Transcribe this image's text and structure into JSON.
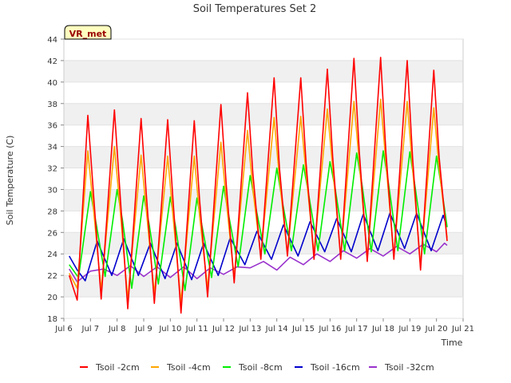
{
  "chart_data": {
    "type": "line",
    "title": "Soil Temperatures Set 2",
    "xlabel": "Time",
    "ylabel": "Soil Temperature (C)",
    "badge": "VR_met",
    "xlim": [
      6.0,
      21.0
    ],
    "ylim": [
      18,
      44
    ],
    "y_ticks": [
      18,
      20,
      22,
      24,
      26,
      28,
      30,
      32,
      34,
      36,
      38,
      40,
      42,
      44
    ],
    "x_ticks": [
      6,
      7,
      8,
      9,
      10,
      11,
      12,
      13,
      14,
      15,
      16,
      17,
      18,
      19,
      20,
      21
    ],
    "x_tick_labels": [
      "Jul 6",
      "Jul 7",
      "Jul 8",
      "Jul 9",
      "Jul 10",
      "Jul 11",
      "Jul 12",
      "Jul 13",
      "Jul 14",
      "Jul 15",
      "Jul 16",
      "Jul 17",
      "Jul 18",
      "Jul 19",
      "Jul 20",
      "Jul 21"
    ],
    "grid": "horizontal bands",
    "legend_position": "bottom",
    "series": [
      {
        "name": "Tsoil -2cm",
        "color": "#ff0000",
        "x": [
          6.2,
          6.5,
          6.9,
          7.1,
          7.4,
          7.9,
          8.1,
          8.4,
          8.9,
          9.1,
          9.4,
          9.9,
          10.1,
          10.4,
          10.9,
          11.1,
          11.4,
          11.9,
          12.1,
          12.4,
          12.9,
          13.1,
          13.4,
          13.9,
          14.1,
          14.4,
          14.9,
          15.1,
          15.4,
          15.9,
          16.1,
          16.4,
          16.9,
          17.1,
          17.4,
          17.9,
          18.1,
          18.4,
          18.9,
          19.1,
          19.4,
          19.9,
          20.1,
          20.4
        ],
        "y": [
          22.0,
          19.7,
          36.9,
          30.0,
          19.8,
          37.4,
          30.0,
          18.9,
          36.6,
          29.5,
          19.4,
          36.5,
          29.0,
          18.5,
          36.4,
          29.0,
          20.0,
          37.9,
          30.5,
          21.3,
          39.0,
          31.5,
          23.5,
          40.4,
          32.0,
          23.8,
          40.4,
          32.5,
          23.5,
          41.2,
          33.0,
          23.5,
          42.2,
          33.5,
          23.3,
          42.3,
          33.5,
          23.5,
          42.0,
          33.0,
          22.5,
          41.1,
          33.0,
          25.2
        ]
      },
      {
        "name": "Tsoil -4cm",
        "color": "#ffa500",
        "x": [
          6.2,
          6.5,
          6.9,
          7.1,
          7.4,
          7.9,
          8.1,
          8.4,
          8.9,
          9.1,
          9.4,
          9.9,
          10.1,
          10.4,
          10.9,
          11.1,
          11.4,
          11.9,
          12.1,
          12.4,
          12.9,
          13.1,
          13.4,
          13.9,
          14.1,
          14.4,
          14.9,
          15.1,
          15.4,
          15.9,
          16.1,
          16.4,
          16.9,
          17.1,
          17.4,
          17.9,
          18.1,
          18.4,
          18.9,
          19.1,
          19.4,
          19.9,
          20.1,
          20.4
        ],
        "y": [
          22.2,
          20.8,
          33.6,
          28.5,
          20.6,
          34.0,
          28.5,
          19.8,
          33.2,
          28.0,
          20.3,
          33.1,
          27.5,
          19.5,
          33.1,
          27.5,
          20.8,
          34.4,
          29.0,
          21.8,
          35.5,
          30.0,
          23.8,
          36.7,
          31.0,
          24.0,
          36.8,
          31.5,
          24.0,
          37.5,
          32.0,
          23.8,
          38.2,
          32.5,
          23.6,
          38.4,
          32.5,
          23.8,
          38.2,
          32.0,
          23.0,
          37.6,
          32.0,
          25.5
        ]
      },
      {
        "name": "Tsoil -8cm",
        "color": "#00ee00",
        "x": [
          6.2,
          6.55,
          7.0,
          7.2,
          7.55,
          8.0,
          8.2,
          8.55,
          9.0,
          9.2,
          9.55,
          10.0,
          10.2,
          10.55,
          11.0,
          11.2,
          11.55,
          12.0,
          12.2,
          12.55,
          13.0,
          13.2,
          13.55,
          14.0,
          14.2,
          14.55,
          15.0,
          15.2,
          15.55,
          16.0,
          16.2,
          16.55,
          17.0,
          17.2,
          17.55,
          18.0,
          18.2,
          18.55,
          19.0,
          19.2,
          19.55,
          20.0,
          20.2,
          20.4
        ],
        "y": [
          23.0,
          21.8,
          29.8,
          27.0,
          21.9,
          30.0,
          27.2,
          20.8,
          29.4,
          26.8,
          21.2,
          29.3,
          26.5,
          20.6,
          29.2,
          26.5,
          21.8,
          30.3,
          27.5,
          22.8,
          31.3,
          28.5,
          24.0,
          32.0,
          29.0,
          24.3,
          32.3,
          29.5,
          24.3,
          32.6,
          30.0,
          24.3,
          33.4,
          30.5,
          24.2,
          33.6,
          30.5,
          24.3,
          33.5,
          30.2,
          24.0,
          33.1,
          30.0,
          26.5
        ]
      },
      {
        "name": "Tsoil -16cm",
        "color": "#0000cc",
        "x": [
          6.2,
          6.5,
          6.8,
          7.25,
          7.8,
          8.25,
          8.8,
          9.25,
          9.8,
          10.25,
          10.8,
          11.25,
          11.8,
          12.25,
          12.8,
          13.25,
          13.8,
          14.25,
          14.8,
          15.25,
          15.8,
          16.25,
          16.8,
          17.25,
          17.8,
          18.25,
          18.8,
          19.25,
          19.8,
          20.25,
          20.4
        ],
        "y": [
          23.8,
          22.5,
          21.5,
          25.2,
          22.0,
          25.4,
          22.0,
          25.0,
          21.7,
          25.0,
          21.6,
          25.0,
          22.0,
          25.5,
          23.0,
          26.1,
          23.5,
          26.7,
          23.8,
          27.0,
          24.2,
          27.3,
          24.2,
          27.7,
          24.3,
          27.8,
          24.5,
          27.8,
          24.3,
          27.6,
          26.5
        ]
      },
      {
        "name": "Tsoil -32cm",
        "color": "#9932cc",
        "x": [
          6.2,
          6.5,
          7.0,
          7.5,
          8.0,
          8.5,
          9.0,
          9.5,
          10.0,
          10.5,
          11.0,
          11.5,
          12.0,
          12.5,
          13.0,
          13.5,
          14.0,
          14.5,
          15.0,
          15.5,
          16.0,
          16.5,
          17.0,
          17.5,
          18.0,
          18.5,
          19.0,
          19.5,
          20.0,
          20.3,
          20.4
        ],
        "y": [
          22.6,
          21.4,
          22.4,
          22.6,
          22.0,
          22.9,
          21.9,
          22.8,
          21.8,
          22.8,
          21.7,
          22.7,
          22.1,
          22.8,
          22.7,
          23.3,
          22.5,
          23.7,
          23.0,
          24.0,
          23.3,
          24.3,
          23.6,
          24.5,
          23.8,
          24.7,
          24.0,
          24.9,
          24.2,
          25.0,
          24.8
        ]
      }
    ]
  }
}
